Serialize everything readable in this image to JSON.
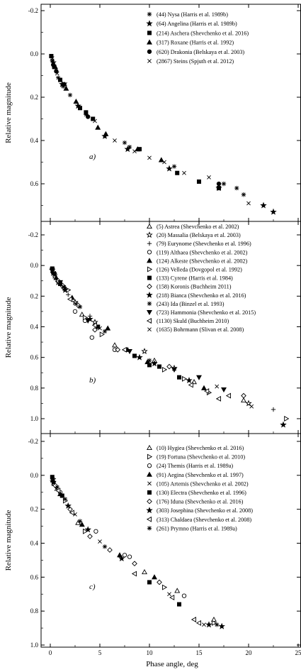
{
  "chart_data": [
    {
      "type": "scatter",
      "panel_label": "a)",
      "xlim": [
        -1,
        25
      ],
      "ylim": [
        -0.2,
        0.8
      ],
      "y_inverted": true,
      "xlabel": "",
      "ylabel": "Relative magnitude",
      "x_ticks": [],
      "y_ticks": [
        "-0.2",
        "0.0",
        "0.2",
        "0.4",
        "0.6"
      ],
      "y_tick_values": [
        -0.2,
        0.0,
        0.2,
        0.4,
        0.6
      ],
      "legend_position": "top-right",
      "series": [
        {
          "name": "(44) Nysa (Harris et al. 1989b)",
          "marker": "asterisk",
          "points": [
            [
              0.2,
              0.03
            ],
            [
              0.4,
              0.06
            ],
            [
              0.8,
              0.11
            ],
            [
              1.3,
              0.15
            ],
            [
              2.0,
              0.19
            ],
            [
              3.6,
              0.28
            ],
            [
              7.5,
              0.41
            ],
            [
              8.0,
              0.43
            ],
            [
              12.5,
              0.52
            ],
            [
              17.5,
              0.6
            ],
            [
              18.8,
              0.62
            ],
            [
              19.5,
              0.65
            ]
          ]
        },
        {
          "name": "(64) Angelina (Harris et al. 1989b)",
          "marker": "star",
          "points": [
            [
              0.3,
              0.04
            ],
            [
              1.2,
              0.14
            ],
            [
              2.8,
              0.24
            ],
            [
              5.5,
              0.38
            ],
            [
              7.8,
              0.44
            ],
            [
              12.0,
              0.53
            ],
            [
              17.0,
              0.62
            ],
            [
              21.5,
              0.7
            ],
            [
              22.5,
              0.73
            ]
          ]
        },
        {
          "name": "(214) Aschera (Shevchenko et al. 2016)",
          "marker": "square",
          "points": [
            [
              0.1,
              0.01
            ],
            [
              0.4,
              0.06
            ],
            [
              1.0,
              0.12
            ],
            [
              3.0,
              0.25
            ],
            [
              3.6,
              0.27
            ],
            [
              4.3,
              0.3
            ],
            [
              9.0,
              0.44
            ],
            [
              12.8,
              0.55
            ],
            [
              15.0,
              0.59
            ],
            [
              17.0,
              0.62
            ]
          ]
        },
        {
          "name": "(317) Roxane (Harris et al. 1992)",
          "marker": "triangle-up",
          "points": [
            [
              0.5,
              0.06
            ],
            [
              1.6,
              0.16
            ],
            [
              2.6,
              0.22
            ],
            [
              4.8,
              0.34
            ],
            [
              5.6,
              0.37
            ],
            [
              8.8,
              0.44
            ],
            [
              11.2,
              0.49
            ]
          ]
        },
        {
          "name": "(620) Drakonia (Belskaya et al. 2003)",
          "marker": "circle",
          "points": [
            [
              0.3,
              0.05
            ],
            [
              0.6,
              0.08
            ],
            [
              1.4,
              0.14
            ],
            [
              3.8,
              0.29
            ],
            [
              17.0,
              0.6
            ]
          ]
        },
        {
          "name": "(2867) Steins (Spjuth et al. 2012)",
          "marker": "x",
          "points": [
            [
              0.2,
              0.02
            ],
            [
              0.7,
              0.09
            ],
            [
              1.5,
              0.14
            ],
            [
              4.5,
              0.31
            ],
            [
              6.5,
              0.4
            ],
            [
              8.5,
              0.45
            ],
            [
              10.0,
              0.48
            ],
            [
              11.5,
              0.5
            ],
            [
              13.5,
              0.55
            ],
            [
              16.0,
              0.57
            ],
            [
              20.0,
              0.69
            ]
          ]
        }
      ]
    },
    {
      "type": "scatter",
      "panel_label": "b)",
      "xlim": [
        -1,
        25
      ],
      "ylim": [
        -0.2,
        1.1
      ],
      "y_inverted": true,
      "xlabel": "",
      "ylabel": "Relative magnitude",
      "x_ticks": [],
      "y_ticks": [
        "-0.2",
        "0.0",
        "0.2",
        "0.4",
        "0.6",
        "0.8",
        "1.0"
      ],
      "y_tick_values": [
        -0.2,
        0.0,
        0.2,
        0.4,
        0.6,
        0.8,
        1.0
      ],
      "legend_position": "top-right",
      "series": [
        {
          "name": "(5) Astrea (Shevchenko et al. 2002)",
          "marker": "triangle-up-open",
          "points": [
            [
              0.5,
              0.07
            ],
            [
              1.5,
              0.15
            ],
            [
              3.2,
              0.32
            ],
            [
              6.5,
              0.52
            ],
            [
              10.5,
              0.62
            ],
            [
              14.5,
              0.76
            ],
            [
              19.5,
              0.88
            ]
          ]
        },
        {
          "name": "(20) Massalia (Belskaya et al. 2003)",
          "marker": "star-open",
          "points": [
            [
              0.2,
              0.03
            ],
            [
              0.8,
              0.11
            ],
            [
              2.5,
              0.24
            ],
            [
              4.5,
              0.37
            ],
            [
              9.5,
              0.56
            ],
            [
              12.5,
              0.67
            ],
            [
              20.0,
              0.9
            ]
          ]
        },
        {
          "name": "(79) Eurynome (Shevchenko et al. 1996)",
          "marker": "plus",
          "points": [
            [
              0.6,
              0.09
            ],
            [
              1.8,
              0.19
            ],
            [
              4.0,
              0.33
            ],
            [
              22.5,
              0.94
            ]
          ]
        },
        {
          "name": "(119) Althaea (Shevchenko et al. 2002)",
          "marker": "circle-open",
          "points": [
            [
              0.4,
              0.05
            ],
            [
              1.2,
              0.13
            ],
            [
              2.5,
              0.3
            ],
            [
              3.5,
              0.36
            ],
            [
              4.2,
              0.47
            ],
            [
              6.5,
              0.55
            ]
          ]
        },
        {
          "name": "(124) Alkeste (Shevchenko et al. 2002)",
          "marker": "triangle-up",
          "points": [
            [
              0.6,
              0.08
            ],
            [
              2.2,
              0.21
            ],
            [
              5.8,
              0.41
            ],
            [
              7.8,
              0.55
            ],
            [
              9.8,
              0.63
            ],
            [
              15.5,
              0.8
            ]
          ]
        },
        {
          "name": "(126) Velleda (Dovgopol et al. 1992)",
          "marker": "triangle-right-open",
          "points": [
            [
              0.3,
              0.04
            ],
            [
              1.8,
              0.16
            ],
            [
              3.5,
              0.34
            ],
            [
              5.2,
              0.45
            ],
            [
              11.5,
              0.68
            ],
            [
              13.5,
              0.74
            ],
            [
              16.0,
              0.83
            ],
            [
              23.8,
              1.0
            ]
          ]
        },
        {
          "name": "(133) Cyrene (Harris et al. 1984)",
          "marker": "square",
          "points": [
            [
              0.2,
              0.02
            ],
            [
              1.0,
              0.12
            ],
            [
              4.8,
              0.4
            ],
            [
              8.5,
              0.59
            ],
            [
              10.0,
              0.65
            ],
            [
              11.0,
              0.66
            ],
            [
              13.0,
              0.73
            ]
          ]
        },
        {
          "name": "(158) Koronis (Buchheim 2011)",
          "marker": "diamond-open",
          "points": [
            [
              0.8,
              0.1
            ],
            [
              2.8,
              0.26
            ],
            [
              4.5,
              0.42
            ],
            [
              6.8,
              0.55
            ],
            [
              12.0,
              0.66
            ],
            [
              19.5,
              0.85
            ]
          ]
        },
        {
          "name": "(218) Bianca (Shevchenko et al. 2016)",
          "marker": "star",
          "points": [
            [
              0.3,
              0.05
            ],
            [
              1.5,
              0.16
            ],
            [
              4.0,
              0.35
            ],
            [
              9.0,
              0.6
            ],
            [
              10.5,
              0.64
            ],
            [
              14.0,
              0.75
            ],
            [
              23.5,
              1.04
            ]
          ]
        },
        {
          "name": "(243) Ida (Binzel et al. 1993)",
          "marker": "asterisk",
          "points": [
            [
              0.5,
              0.06
            ],
            [
              1.4,
              0.14
            ],
            [
              3.0,
              0.27
            ],
            [
              5.5,
              0.43
            ],
            [
              10.0,
              0.62
            ]
          ]
        },
        {
          "name": "(723) Hammonia (Shevchenko et al. 2015)",
          "marker": "triangle-down",
          "points": [
            [
              0.2,
              0.03
            ],
            [
              1.0,
              0.11
            ],
            [
              3.8,
              0.36
            ],
            [
              8.0,
              0.56
            ],
            [
              12.5,
              0.68
            ],
            [
              15.0,
              0.73
            ],
            [
              17.5,
              0.81
            ]
          ]
        },
        {
          "name": "(1130) Skuld (Buchheim 2010)",
          "marker": "triangle-left-open",
          "points": [
            [
              2.0,
              0.22
            ],
            [
              4.5,
              0.39
            ],
            [
              7.5,
              0.55
            ],
            [
              14.2,
              0.78
            ],
            [
              15.8,
              0.82
            ],
            [
              17.0,
              0.87
            ],
            [
              18.0,
              0.85
            ]
          ]
        },
        {
          "name": "(1635) Bohrmann (Slivan et al. 2008)",
          "marker": "x",
          "points": [
            [
              0.4,
              0.06
            ],
            [
              1.3,
              0.14
            ],
            [
              2.6,
              0.25
            ],
            [
              5.0,
              0.41
            ],
            [
              11.0,
              0.66
            ],
            [
              16.8,
              0.79
            ],
            [
              20.3,
              0.92
            ]
          ]
        }
      ]
    },
    {
      "type": "scatter",
      "panel_label": "c)",
      "xlim": [
        -1,
        25
      ],
      "ylim": [
        -0.2,
        1.0
      ],
      "y_inverted": true,
      "xlabel": "Phase angle, deg",
      "ylabel": "Relative magnitude",
      "x_ticks": [
        "0",
        "5",
        "10",
        "15",
        "20",
        "25"
      ],
      "x_tick_values": [
        0,
        5,
        10,
        15,
        20,
        25
      ],
      "y_ticks": [
        "-0.2",
        "0.0",
        "0.2",
        "0.4",
        "0.6",
        "0.8",
        "1.0"
      ],
      "y_tick_values": [
        -0.2,
        0.0,
        0.2,
        0.4,
        0.6,
        0.8,
        1.0
      ],
      "legend_position": "top-right",
      "series": [
        {
          "name": "(10) Hygiea (Shevchenko et al. 2016)",
          "marker": "triangle-up-open",
          "points": [
            [
              0.4,
              0.05
            ],
            [
              2.8,
              0.28
            ],
            [
              9.5,
              0.57
            ],
            [
              12.8,
              0.68
            ],
            [
              16.5,
              0.85
            ]
          ]
        },
        {
          "name": "(19) Fortuna (Shevchenko et al. 2010)",
          "marker": "triangle-right-open",
          "points": [
            [
              0.3,
              0.02
            ],
            [
              1.5,
              0.15
            ],
            [
              3.5,
              0.33
            ],
            [
              11.5,
              0.66
            ],
            [
              16.5,
              0.87
            ]
          ]
        },
        {
          "name": "(24) Themis (Harris et al. 1989a)",
          "marker": "circle-open",
          "points": [
            [
              1.0,
              0.1
            ],
            [
              4.6,
              0.33
            ],
            [
              7.5,
              0.47
            ],
            [
              8.0,
              0.48
            ],
            [
              13.5,
              0.71
            ]
          ]
        },
        {
          "name": "(91) Aegina (Shevchenko et al. 1997)",
          "marker": "triangle-up",
          "points": [
            [
              0.3,
              0.03
            ],
            [
              1.0,
              0.11
            ],
            [
              3.2,
              0.29
            ],
            [
              7.0,
              0.47
            ],
            [
              10.5,
              0.6
            ]
          ]
        },
        {
          "name": "(105) Artemis (Shevchenko et al. 2002)",
          "marker": "x",
          "points": [
            [
              0.6,
              0.08
            ],
            [
              2.5,
              0.23
            ],
            [
              5.0,
              0.39
            ],
            [
              12.0,
              0.7
            ],
            [
              15.5,
              0.88
            ]
          ]
        },
        {
          "name": "(130) Electra (Shevchenko et al. 1996)",
          "marker": "square",
          "points": [
            [
              0.2,
              0.01
            ],
            [
              1.2,
              0.12
            ],
            [
              10.0,
              0.63
            ],
            [
              13.0,
              0.76
            ]
          ]
        },
        {
          "name": "(176) Iduna (Shevchenko et al. 2016)",
          "marker": "diamond-open",
          "points": [
            [
              0.5,
              0.06
            ],
            [
              2.0,
              0.2
            ],
            [
              4.0,
              0.36
            ],
            [
              6.0,
              0.44
            ],
            [
              8.5,
              0.52
            ],
            [
              11.0,
              0.63
            ]
          ]
        },
        {
          "name": "(303) Josephina (Shevchenko et al. 2008)",
          "marker": "star",
          "points": [
            [
              0.3,
              0.04
            ],
            [
              1.8,
              0.18
            ],
            [
              3.8,
              0.32
            ],
            [
              7.2,
              0.49
            ],
            [
              16.0,
              0.88
            ],
            [
              17.3,
              0.89
            ]
          ]
        },
        {
          "name": "(313) Chaldaea (Shevchenko et al. 2008)",
          "marker": "triangle-left-open",
          "points": [
            [
              0.8,
              0.09
            ],
            [
              2.2,
              0.22
            ],
            [
              8.5,
              0.58
            ],
            [
              12.3,
              0.72
            ],
            [
              14.5,
              0.85
            ],
            [
              15.0,
              0.87
            ]
          ]
        },
        {
          "name": "(261) Prymno (Harris et al. 1989a)",
          "marker": "asterisk",
          "points": [
            [
              0.2,
              0.03
            ],
            [
              0.7,
              0.07
            ],
            [
              1.5,
              0.14
            ],
            [
              3.0,
              0.27
            ],
            [
              5.5,
              0.42
            ],
            [
              16.8,
              0.88
            ]
          ]
        }
      ]
    }
  ]
}
